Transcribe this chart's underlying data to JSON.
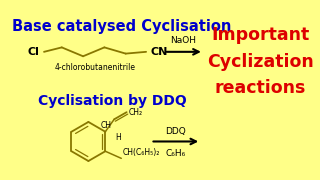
{
  "bg_color": "#FFFF88",
  "title1": "Base catalysed Cyclisation",
  "title1_color": "#0000CC",
  "title1_fontsize": 10.5,
  "title2": "Cyclisation by DDQ",
  "title2_color": "#0000CC",
  "title2_fontsize": 10,
  "label_chloro": "4-chlorobutanenitrile",
  "label_chloro_fontsize": 5.5,
  "reagent1": "NaOH",
  "reagent1_fontsize": 6.5,
  "reagent2_top": "DDQ",
  "reagent2_bot": "C₆H₆",
  "reagent2_fontsize": 6.5,
  "side1": "Important",
  "side2": "Cyclization",
  "side3": "reactions",
  "side_color": "#DD0000",
  "side_fontsize": 12.5,
  "line_color": "#887700",
  "arrow_color": "#000000"
}
